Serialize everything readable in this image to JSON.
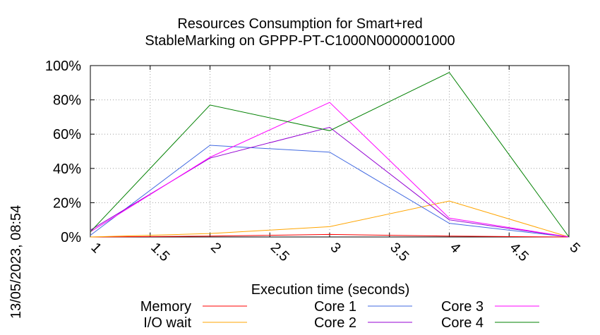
{
  "chart_data": {
    "type": "line",
    "title": "Resources Consumption for Smart+red",
    "subtitle": "StableMarking on GPPP-PT-C1000N0000001000",
    "xlabel": "Execution time (seconds)",
    "ylabel": "",
    "side_stamp": "13/05/2023, 08:54",
    "xlim": [
      1,
      5
    ],
    "ylim": [
      0,
      100
    ],
    "x_ticks": [
      1,
      1.5,
      2,
      2.5,
      3,
      3.5,
      4,
      4.5,
      5
    ],
    "x_tick_labels": [
      "1",
      "1.5",
      "2",
      "2.5",
      "3",
      "3.5",
      "4",
      "4.5",
      "5"
    ],
    "y_ticks": [
      0,
      20,
      40,
      60,
      80,
      100
    ],
    "y_tick_labels": [
      "0%",
      "20%",
      "40%",
      "60%",
      "80%",
      "100%"
    ],
    "grid": true,
    "legend_position": "bottom",
    "x": [
      1,
      2,
      3,
      4,
      5
    ],
    "series": [
      {
        "name": "Memory",
        "color": "#ff0000",
        "values": [
          0,
          0.5,
          1.5,
          0.5,
          0
        ]
      },
      {
        "name": "I/O wait",
        "color": "#ffa500",
        "values": [
          0,
          2,
          6,
          21,
          0
        ]
      },
      {
        "name": "Core 1",
        "color": "#4169e1",
        "values": [
          1,
          53.5,
          49.5,
          8,
          0
        ]
      },
      {
        "name": "Core 2",
        "color": "#9400d3",
        "values": [
          4,
          46,
          64,
          10,
          0
        ]
      },
      {
        "name": "Core 3",
        "color": "#ff00ff",
        "values": [
          3,
          46.5,
          78.5,
          11,
          0
        ]
      },
      {
        "name": "Core 4",
        "color": "#008000",
        "values": [
          3,
          77,
          62,
          96,
          0
        ]
      }
    ]
  }
}
